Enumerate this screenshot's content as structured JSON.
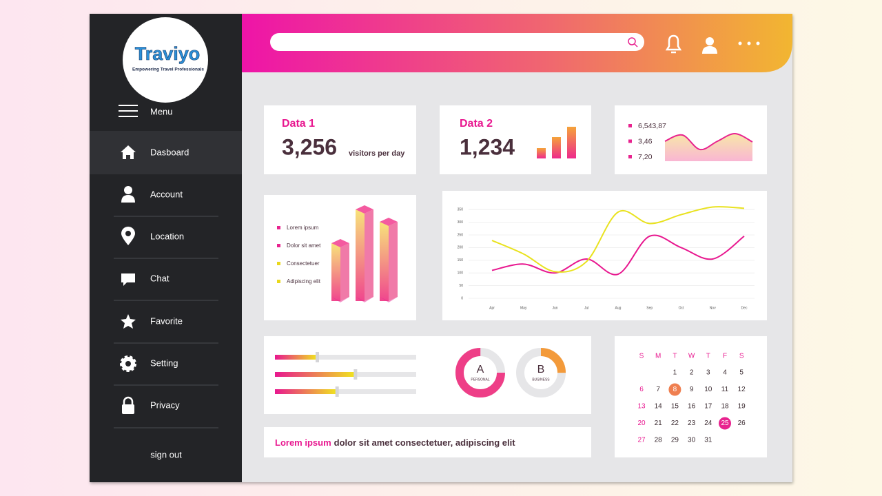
{
  "logo": {
    "name": "Traviyo",
    "tagline": "Empowering Travel Professionals"
  },
  "sidebar": {
    "menu": "Menu",
    "items": [
      "Dasboard",
      "Account",
      "Location",
      "Chat",
      "Favorite",
      "Setting",
      "Privacy"
    ],
    "sign_out": "sign out"
  },
  "data1": {
    "title": "Data 1",
    "value": "3,256",
    "unit": "visitors per day"
  },
  "data2": {
    "title": "Data 2",
    "value": "1,234",
    "chart": {
      "type": "bar",
      "values": [
        15,
        31,
        46
      ]
    }
  },
  "stats": {
    "labels": [
      "6,543,87",
      "3,46",
      "7,20"
    ],
    "chart": {
      "type": "area",
      "values": [
        29,
        38,
        17,
        29,
        40,
        28
      ],
      "color": "#e8238f"
    }
  },
  "bars3d": {
    "type": "bar3d",
    "legend": [
      {
        "name": "Lorem ipsum",
        "color": "#e8238f"
      },
      {
        "name": "Dolor sit amet",
        "color": "#e8238f"
      },
      {
        "name": "Consectetuer",
        "color": "#e9d81c"
      },
      {
        "name": "Adipiscing elit",
        "color": "#e9d81c"
      }
    ],
    "values": [
      84,
      133,
      115
    ]
  },
  "line_chart": {
    "type": "line",
    "categories": [
      "Apr",
      "May",
      "Jun",
      "Jul",
      "Aug",
      "Sep",
      "Oct",
      "Nov",
      "Dec"
    ],
    "series": [
      {
        "color": "#e8178f",
        "values": [
          110,
          135,
          100,
          155,
          95,
          245,
          200,
          155,
          245
        ]
      },
      {
        "color": "#e9e21f",
        "values": [
          228,
          175,
          105,
          145,
          340,
          295,
          330,
          360,
          355
        ]
      }
    ],
    "ylim": [
      0,
      375
    ],
    "yticks": [
      0,
      50,
      100,
      150,
      200,
      250,
      300,
      350
    ],
    "grid": true
  },
  "sliders": {
    "type": "slider",
    "values": [
      30,
      57,
      44
    ],
    "xlim": [
      0,
      100
    ]
  },
  "donuts": {
    "type": "donut",
    "items": [
      {
        "letter": "A",
        "label": "PERSONAL",
        "value": 75,
        "color": "#ee3e87"
      },
      {
        "letter": "B",
        "label": "BUSINESS",
        "value": 25,
        "color": "#f39a3a"
      }
    ]
  },
  "note": {
    "highlight": "Lorem ipsum",
    "text": "dolor sit amet consectetuer, adipiscing elit"
  },
  "calendar": {
    "weekdays": [
      "S",
      "M",
      "T",
      "W",
      "T",
      "F",
      "S"
    ],
    "weeks": [
      [
        null,
        null,
        1,
        2,
        3,
        4,
        5
      ],
      [
        6,
        7,
        {
          "day": 8,
          "highlight": "#ef7f50"
        },
        9,
        10,
        11,
        12
      ],
      [
        13,
        14,
        15,
        16,
        17,
        18,
        19
      ],
      [
        20,
        21,
        22,
        23,
        24,
        {
          "day": 25,
          "highlight": "#e8238f"
        },
        26
      ],
      [
        27,
        28,
        29,
        30,
        31,
        null,
        null
      ]
    ]
  }
}
